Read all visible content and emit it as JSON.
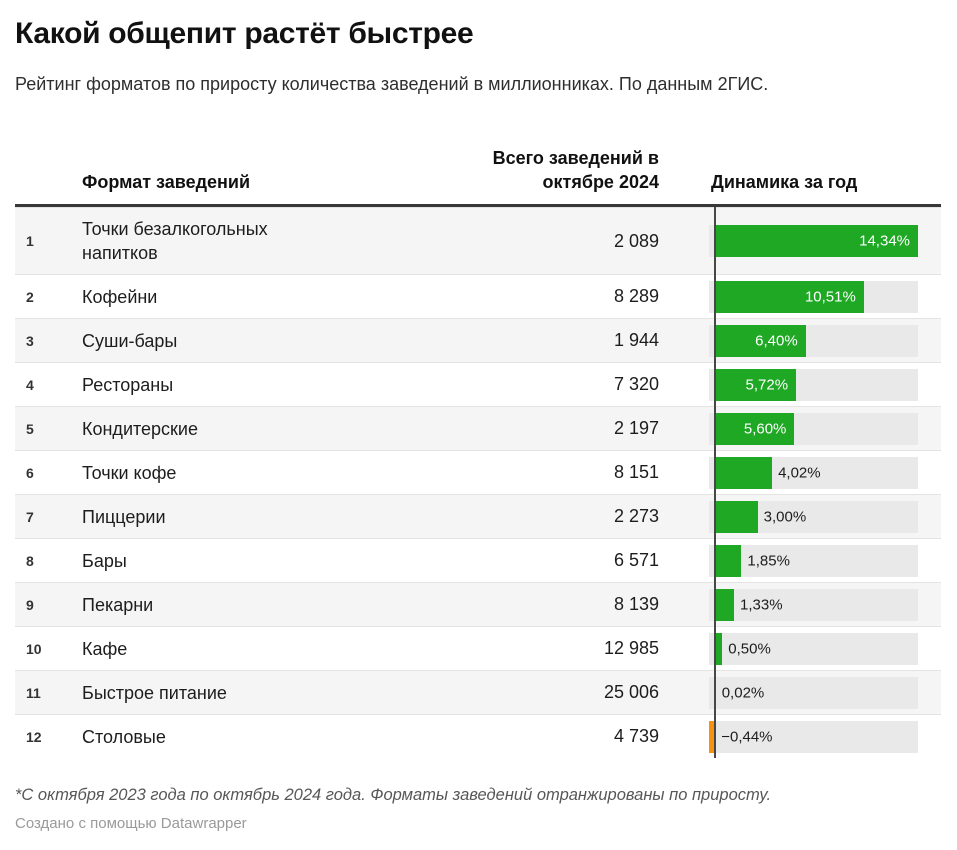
{
  "header": {
    "title": "Какой общепит растёт быстрее",
    "subtitle": "Рейтинг форматов по приросту количества заведений в миллионниках. По данным 2ГИС."
  },
  "columns": {
    "format": "Формат заведений",
    "total": "Всего заведений в октябре 2024",
    "dynamics": "Динамика за год"
  },
  "table": {
    "rows": [
      {
        "rank": "1",
        "format": "Точки безалкогольных напитков",
        "total": "2 089",
        "value": 14.34,
        "label": "14,34%"
      },
      {
        "rank": "2",
        "format": "Кофейни",
        "total": "8 289",
        "value": 10.51,
        "label": "10,51%"
      },
      {
        "rank": "3",
        "format": "Суши-бары",
        "total": "1 944",
        "value": 6.4,
        "label": "6,40%"
      },
      {
        "rank": "4",
        "format": "Рестораны",
        "total": "7 320",
        "value": 5.72,
        "label": "5,72%"
      },
      {
        "rank": "5",
        "format": "Кондитерские",
        "total": "2 197",
        "value": 5.6,
        "label": "5,60%"
      },
      {
        "rank": "6",
        "format": "Точки кофе",
        "total": "8 151",
        "value": 4.02,
        "label": "4,02%"
      },
      {
        "rank": "7",
        "format": "Пиццерии",
        "total": "2 273",
        "value": 3.0,
        "label": "3,00%"
      },
      {
        "rank": "8",
        "format": "Бары",
        "total": "6 571",
        "value": 1.85,
        "label": "1,85%"
      },
      {
        "rank": "9",
        "format": "Пекарни",
        "total": "8 139",
        "value": 1.33,
        "label": "1,33%"
      },
      {
        "rank": "10",
        "format": "Кафе",
        "total": "12 985",
        "value": 0.5,
        "label": "0,50%"
      },
      {
        "rank": "11",
        "format": "Быстрое питание",
        "total": "25 006",
        "value": 0.02,
        "label": "0,02%"
      },
      {
        "rank": "12",
        "format": "Столовые",
        "total": "4 739",
        "value": -0.44,
        "label": "−0,44%"
      }
    ]
  },
  "chart_data": {
    "type": "bar",
    "title": "Какой общепит растёт быстрее",
    "subtitle": "Рейтинг форматов по приросту количества заведений в миллионниках. По данным 2ГИС.",
    "categories": [
      "Точки безалкогольных напитков",
      "Кофейни",
      "Суши-бары",
      "Рестораны",
      "Кондитерские",
      "Точки кофе",
      "Пиццерии",
      "Бары",
      "Пекарни",
      "Кафе",
      "Быстрое питание",
      "Столовые"
    ],
    "series": [
      {
        "name": "Всего заведений в октябре 2024",
        "values": [
          2089,
          8289,
          1944,
          7320,
          2197,
          8151,
          2273,
          6571,
          8139,
          12985,
          25006,
          4739
        ]
      },
      {
        "name": "Динамика за год, %",
        "values": [
          14.34,
          10.51,
          6.4,
          5.72,
          5.6,
          4.02,
          3.0,
          1.85,
          1.33,
          0.5,
          0.02,
          -0.44
        ]
      }
    ],
    "xlabel": "",
    "ylabel": "Динамика за год",
    "xlim": [
      -0.44,
      14.34
    ],
    "grid": false,
    "legend_position": "none",
    "orientation": "horizontal"
  },
  "colors": {
    "positive": "#1ea824",
    "negative": "#f6920f",
    "bar_track": "#e9e9e9",
    "row_alt": "#f5f5f5",
    "axis_line": "#474747",
    "header_rule": "#383838",
    "label_inside": "#ffffff"
  },
  "footer": {
    "note": "*С октября 2023 года по октябрь 2024 года. Форматы заведений отранжированы по приросту.",
    "credit": "Создано с помощью Datawrapper"
  }
}
